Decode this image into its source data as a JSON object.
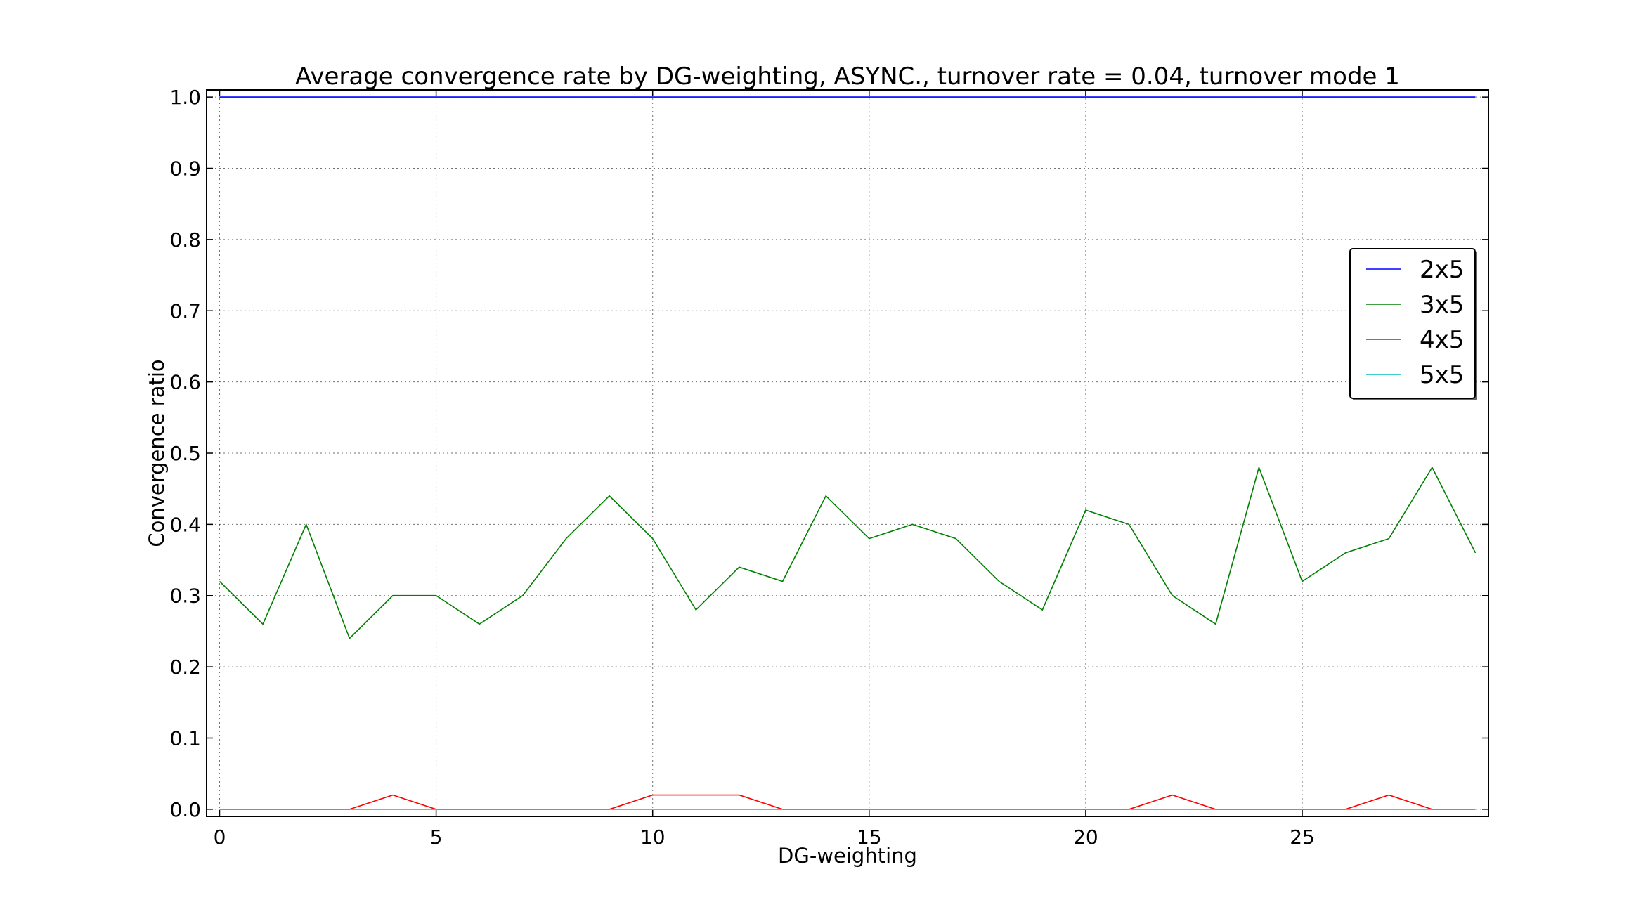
{
  "chart_data": {
    "type": "line",
    "title": "Average convergence rate by DG-weighting, ASYNC., turnover rate = 0.04, turnover mode 1",
    "xlabel": "DG-weighting",
    "ylabel": "Convergence ratio",
    "xlim": [
      -0.3,
      29.3
    ],
    "ylim": [
      -0.01,
      1.01
    ],
    "x_ticks": [
      0,
      5,
      10,
      15,
      20,
      25
    ],
    "y_ticks": [
      0.0,
      0.1,
      0.2,
      0.3,
      0.4,
      0.5,
      0.6,
      0.7,
      0.8,
      0.9,
      1.0
    ],
    "x_tick_labels": [
      "0",
      "5",
      "10",
      "15",
      "20",
      "25"
    ],
    "y_tick_labels": [
      "0.0",
      "0.1",
      "0.2",
      "0.3",
      "0.4",
      "0.5",
      "0.6",
      "0.7",
      "0.8",
      "0.9",
      "1.0"
    ],
    "grid": true,
    "legend_position": "right",
    "x": [
      0,
      1,
      2,
      3,
      4,
      5,
      6,
      7,
      8,
      9,
      10,
      11,
      12,
      13,
      14,
      15,
      16,
      17,
      18,
      19,
      20,
      21,
      22,
      23,
      24,
      25,
      26,
      27,
      28,
      29
    ],
    "series": [
      {
        "name": "2x5",
        "color": "#0000ff",
        "values": [
          1,
          1,
          1,
          1,
          1,
          1,
          1,
          1,
          1,
          1,
          1,
          1,
          1,
          1,
          1,
          1,
          1,
          1,
          1,
          1,
          1,
          1,
          1,
          1,
          1,
          1,
          1,
          1,
          1,
          1
        ]
      },
      {
        "name": "3x5",
        "color": "#008000",
        "values": [
          0.32,
          0.26,
          0.4,
          0.24,
          0.3,
          0.3,
          0.26,
          0.3,
          0.38,
          0.44,
          0.38,
          0.28,
          0.34,
          0.32,
          0.44,
          0.38,
          0.4,
          0.38,
          0.32,
          0.28,
          0.42,
          0.4,
          0.3,
          0.26,
          0.48,
          0.32,
          0.36,
          0.38,
          0.48,
          0.36
        ]
      },
      {
        "name": "4x5",
        "color": "#ff0000",
        "values": [
          0,
          0,
          0,
          0,
          0.02,
          0,
          0,
          0,
          0,
          0,
          0.02,
          0.02,
          0.02,
          0,
          0,
          0,
          0,
          0,
          0,
          0,
          0,
          0,
          0.02,
          0,
          0,
          0,
          0,
          0.02,
          0,
          0
        ]
      },
      {
        "name": "5x5",
        "color": "#00bfbf",
        "values": [
          0,
          0,
          0,
          0,
          0,
          0,
          0,
          0,
          0,
          0,
          0,
          0,
          0,
          0,
          0,
          0,
          0,
          0,
          0,
          0,
          0,
          0,
          0,
          0,
          0,
          0,
          0,
          0,
          0,
          0
        ]
      }
    ]
  }
}
